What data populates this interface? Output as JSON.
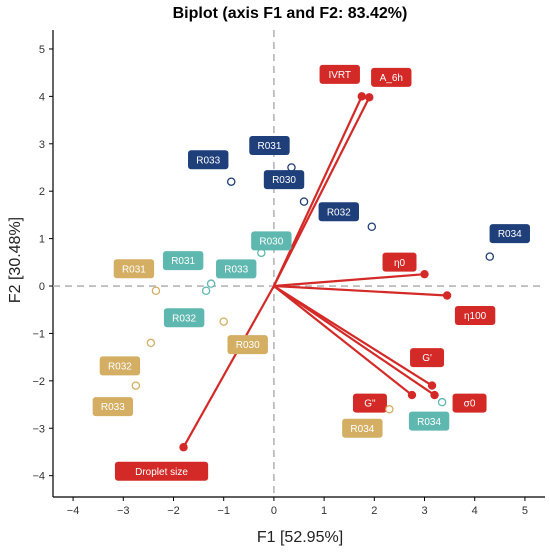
{
  "chart_data": {
    "type": "scatter",
    "title": "Biplot (axis F1 and F2: 83.42%)",
    "xlabel": "F1 [52.95%]",
    "ylabel": "F2 [30.48%]",
    "xlim": [
      -4.4,
      5.4
    ],
    "ylim": [
      -4.45,
      5.4
    ],
    "xticks": [
      -4,
      -3,
      -2,
      -1,
      0,
      1,
      2,
      3,
      4,
      5
    ],
    "yticks": [
      -4,
      -3,
      -2,
      -1,
      0,
      1,
      2,
      3,
      4,
      5
    ],
    "grid": false,
    "reference_lines": [
      0,
      0
    ],
    "colors": {
      "variable": "#d42a27",
      "dark_blue": "#1f3f7a",
      "teal": "#5fb8b0",
      "tan": "#d4ae62"
    },
    "series": [
      {
        "group": "variables",
        "color": "#d42a27",
        "points": [
          {
            "label": "IVRT",
            "x": 1.75,
            "y": 4.0
          },
          {
            "label": "A_6h",
            "x": 1.9,
            "y": 3.98
          },
          {
            "label": "η0",
            "x": 3.0,
            "y": 0.25
          },
          {
            "label": "η100",
            "x": 3.45,
            "y": -0.2
          },
          {
            "label": "G'",
            "x": 3.15,
            "y": -2.1
          },
          {
            "label": "G\"",
            "x": 2.75,
            "y": -2.3
          },
          {
            "label": "σ0",
            "x": 3.2,
            "y": -2.3
          },
          {
            "label": "Droplet size",
            "x": -1.8,
            "y": -3.4
          }
        ]
      },
      {
        "group": "dark_blue",
        "color": "#1f3f7a",
        "points": [
          {
            "label": "R033",
            "x": -0.85,
            "y": 2.2
          },
          {
            "label": "R031",
            "x": 0.35,
            "y": 2.5
          },
          {
            "label": "R032",
            "x": 1.95,
            "y": 1.25
          },
          {
            "label": "R030",
            "x": 0.6,
            "y": 1.78
          },
          {
            "label": "R034",
            "x": 4.3,
            "y": 0.62
          }
        ]
      },
      {
        "group": "teal",
        "color": "#5fb8b0",
        "points": [
          {
            "label": "R031",
            "x": -1.25,
            "y": 0.05
          },
          {
            "label": "R032",
            "x": -1.35,
            "y": -0.1
          },
          {
            "label": "R033",
            "x": -0.95,
            "y": 0.32
          },
          {
            "label": "R030",
            "x": -0.25,
            "y": 0.7
          },
          {
            "label": "R034",
            "x": 3.35,
            "y": -2.45
          }
        ]
      },
      {
        "group": "tan",
        "color": "#d4ae62",
        "points": [
          {
            "label": "R031",
            "x": -2.35,
            "y": -0.1
          },
          {
            "label": "R032",
            "x": -2.45,
            "y": -1.2
          },
          {
            "label": "R033",
            "x": -2.75,
            "y": -2.1
          },
          {
            "label": "R030",
            "x": -1.0,
            "y": -0.75
          },
          {
            "label": "R034",
            "x": 2.3,
            "y": -2.6
          }
        ]
      }
    ]
  }
}
